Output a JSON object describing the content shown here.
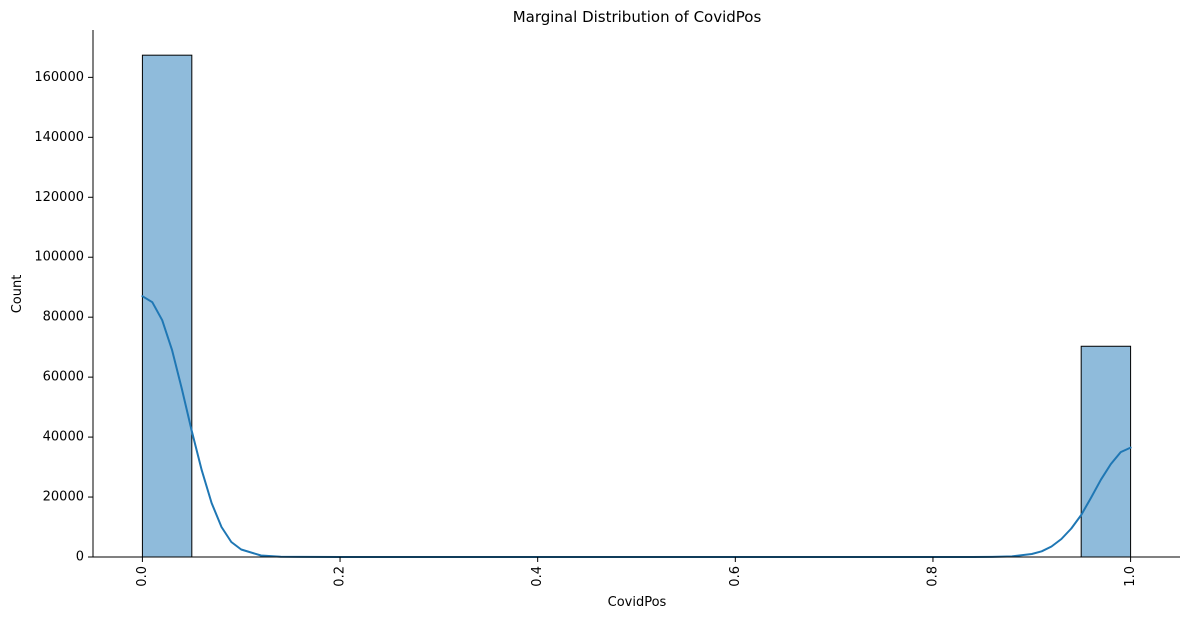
{
  "chart_data": {
    "type": "bar",
    "title": "Marginal Distribution of CovidPos",
    "xlabel": "CovidPos",
    "ylabel": "Count",
    "xlim": [
      -0.05,
      1.05
    ],
    "ylim": [
      0,
      175800
    ],
    "x_ticks": [
      0.0,
      0.2,
      0.4,
      0.6,
      0.8,
      1.0
    ],
    "x_tick_labels": [
      "0.0",
      "0.2",
      "0.4",
      "0.6",
      "0.8",
      "1.0"
    ],
    "y_ticks": [
      0,
      20000,
      40000,
      60000,
      80000,
      100000,
      120000,
      140000,
      160000
    ],
    "y_tick_labels": [
      "0",
      "20000",
      "40000",
      "60000",
      "80000",
      "100000",
      "120000",
      "140000",
      "160000"
    ],
    "bins": [
      {
        "x0": 0.0,
        "x1": 0.05,
        "value": 167400
      },
      {
        "x0": 0.95,
        "x1": 1.0,
        "value": 70300
      }
    ],
    "kde": {
      "x": [
        0.0,
        0.01,
        0.02,
        0.03,
        0.04,
        0.05,
        0.06,
        0.07,
        0.08,
        0.09,
        0.1,
        0.12,
        0.14,
        0.16,
        0.2,
        0.5,
        0.8,
        0.84,
        0.86,
        0.88,
        0.9,
        0.91,
        0.92,
        0.93,
        0.94,
        0.95,
        0.96,
        0.97,
        0.98,
        0.99,
        1.0
      ],
      "y": [
        87000,
        85000,
        79000,
        69000,
        56000,
        42000,
        29000,
        18000,
        10000,
        5000,
        2500,
        500,
        100,
        20,
        0,
        0,
        0,
        10,
        50,
        200,
        1000,
        1900,
        3500,
        6000,
        9500,
        14000,
        19800,
        25800,
        31000,
        35000,
        36500
      ]
    },
    "bar_color": "#8fbbdb",
    "bar_edge_color": "#000000",
    "line_color": "#1f77b4",
    "grid": false
  }
}
